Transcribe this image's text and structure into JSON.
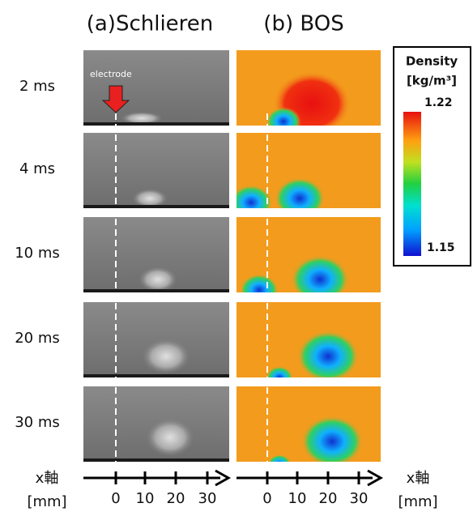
{
  "titles": {
    "a": "(a)Schlieren",
    "b": "(b) BOS"
  },
  "rows": [
    "2 ms",
    "4 ms",
    "10 ms",
    "20 ms",
    "30 ms"
  ],
  "electrode_label": "electrode",
  "colorbar": {
    "title": "Density",
    "unit": "[kg/m³]",
    "max": "1.22",
    "min": "1.15"
  },
  "axis": {
    "label": "x軸",
    "unit": "[mm]",
    "ticks": [
      "0",
      "10",
      "20",
      "30"
    ]
  }
}
